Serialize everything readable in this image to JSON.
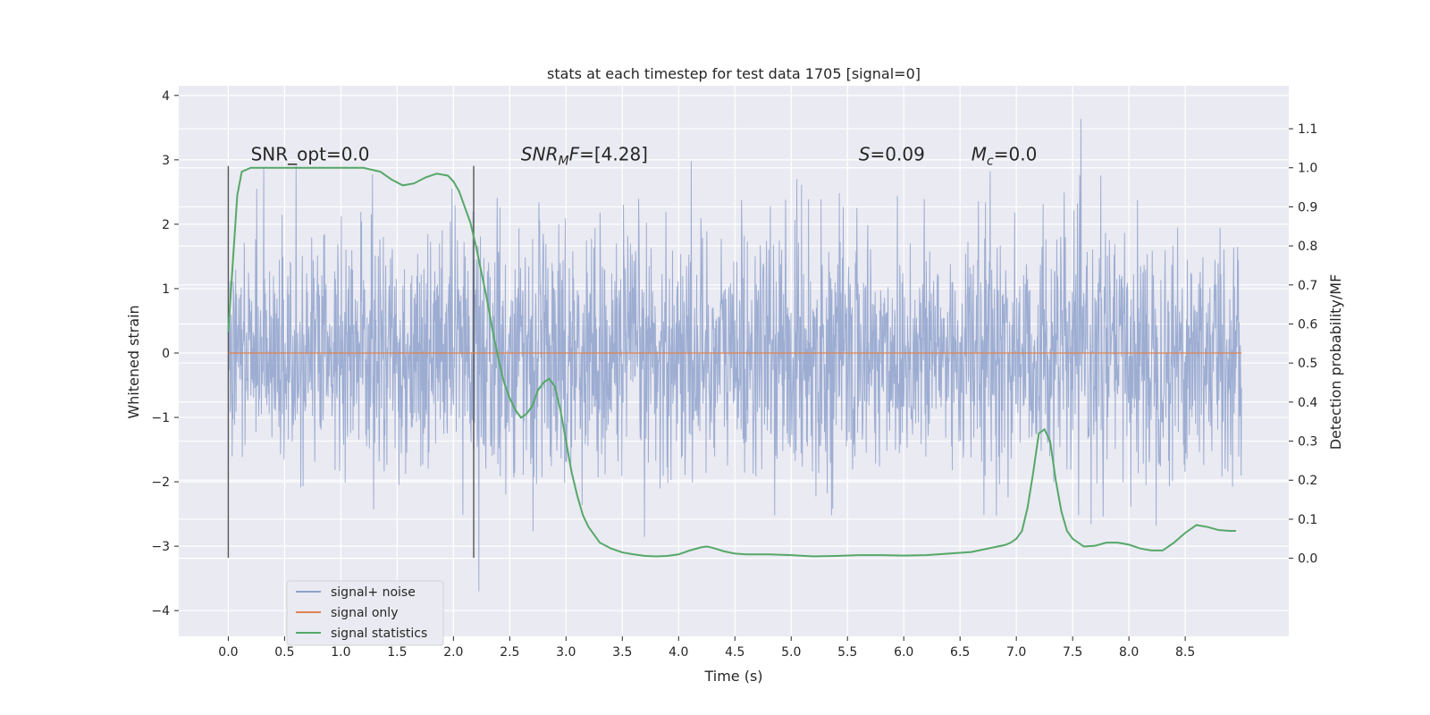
{
  "chart_data": {
    "type": "line",
    "title": "stats at each timestep for test data 1705 [signal=0]",
    "xlabel": "Time (s)",
    "ylabel_left": "Whitened strain",
    "ylabel_right": "Detection probability/MF",
    "xlim": [
      -0.44,
      9.42
    ],
    "ylim_left": [
      -4.4,
      4.15
    ],
    "ylim_right": [
      -0.2,
      1.21
    ],
    "x_ticks": [
      "0.0",
      "0.5",
      "1.0",
      "1.5",
      "2.0",
      "2.5",
      "3.0",
      "3.5",
      "4.0",
      "4.5",
      "5.0",
      "5.5",
      "6.0",
      "6.5",
      "7.0",
      "7.5",
      "8.0",
      "8.5"
    ],
    "y_ticks_left": [
      "4",
      "3",
      "2",
      "1",
      "0",
      "−1",
      "−2",
      "−3",
      "−4"
    ],
    "y_ticks_right": [
      "1.1",
      "1.0",
      "0.9",
      "0.8",
      "0.7",
      "0.6",
      "0.5",
      "0.4",
      "0.3",
      "0.2",
      "0.1",
      "0.0"
    ],
    "grid": true,
    "legend_position": "lower-left",
    "series": [
      {
        "name": "signal+ noise",
        "color": "#8fa2cc",
        "axis": "left",
        "x_range": [
          0.0,
          9.0
        ],
        "typical_range": [
          -2.0,
          1.8
        ],
        "extreme_range": [
          -3.7,
          3.8
        ]
      },
      {
        "name": "signal only",
        "color": "#dd8452",
        "axis": "left",
        "x": [
          0.0,
          9.0
        ],
        "y": [
          0.0,
          0.0
        ]
      },
      {
        "name": "signal statistics",
        "color": "#55a868",
        "axis": "right",
        "x": [
          0.0,
          0.05,
          0.08,
          0.12,
          0.2,
          0.4,
          0.6,
          0.8,
          1.0,
          1.2,
          1.35,
          1.45,
          1.55,
          1.65,
          1.75,
          1.85,
          1.95,
          2.0,
          2.05,
          2.1,
          2.15,
          2.2,
          2.25,
          2.3,
          2.35,
          2.4,
          2.45,
          2.5,
          2.55,
          2.6,
          2.65,
          2.7,
          2.75,
          2.8,
          2.85,
          2.9,
          2.95,
          3.0,
          3.05,
          3.1,
          3.15,
          3.2,
          3.3,
          3.4,
          3.5,
          3.6,
          3.7,
          3.8,
          3.9,
          4.0,
          4.1,
          4.2,
          4.25,
          4.3,
          4.4,
          4.5,
          4.6,
          4.8,
          5.0,
          5.2,
          5.4,
          5.6,
          5.8,
          6.0,
          6.2,
          6.4,
          6.6,
          6.7,
          6.8,
          6.9,
          6.95,
          7.0,
          7.05,
          7.1,
          7.15,
          7.2,
          7.25,
          7.3,
          7.35,
          7.4,
          7.45,
          7.5,
          7.6,
          7.7,
          7.8,
          7.9,
          8.0,
          8.1,
          8.2,
          8.3,
          8.4,
          8.5,
          8.6,
          8.7,
          8.8,
          8.9,
          8.95
        ],
        "y": [
          0.58,
          0.8,
          0.93,
          0.99,
          1.0,
          1.0,
          1.0,
          1.0,
          1.0,
          1.0,
          0.99,
          0.97,
          0.955,
          0.96,
          0.975,
          0.985,
          0.98,
          0.965,
          0.94,
          0.9,
          0.86,
          0.8,
          0.73,
          0.66,
          0.58,
          0.51,
          0.45,
          0.41,
          0.38,
          0.36,
          0.37,
          0.39,
          0.43,
          0.45,
          0.46,
          0.44,
          0.38,
          0.3,
          0.22,
          0.16,
          0.11,
          0.08,
          0.04,
          0.025,
          0.015,
          0.01,
          0.006,
          0.005,
          0.006,
          0.01,
          0.02,
          0.028,
          0.03,
          0.027,
          0.018,
          0.012,
          0.01,
          0.01,
          0.008,
          0.005,
          0.006,
          0.008,
          0.008,
          0.007,
          0.008,
          0.012,
          0.016,
          0.022,
          0.028,
          0.034,
          0.04,
          0.05,
          0.07,
          0.13,
          0.22,
          0.32,
          0.33,
          0.3,
          0.2,
          0.12,
          0.07,
          0.05,
          0.03,
          0.032,
          0.04,
          0.04,
          0.035,
          0.025,
          0.02,
          0.02,
          0.04,
          0.065,
          0.085,
          0.08,
          0.072,
          0.07,
          0.07
        ]
      }
    ],
    "vertical_lines": [
      0.0,
      2.18
    ],
    "annotations": [
      {
        "prefix": "SNR_opt",
        "sub": "",
        "suffix": "=0.0",
        "italic": false,
        "x": 0.2
      },
      {
        "prefix": "SNR",
        "sub": "M",
        "suffix": "F=[4.28]",
        "italic": true,
        "x": 2.6
      },
      {
        "prefix": "S",
        "sub": "",
        "suffix": "=0.09",
        "italic": true,
        "x": 5.6
      },
      {
        "prefix": "M",
        "sub": "c",
        "suffix": "=0.0",
        "italic": true,
        "x": 6.6
      }
    ]
  }
}
